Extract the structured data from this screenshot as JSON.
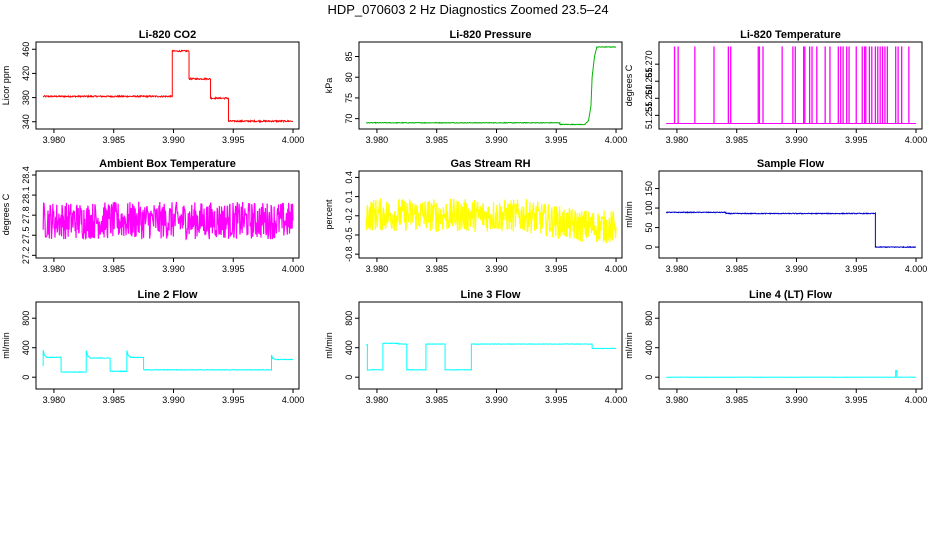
{
  "figure_title": "HDP_070603  2 Hz Diagnostics Zoomed 23.5–24",
  "chart_data": [
    {
      "type": "line",
      "title": "Li-820 CO2",
      "xlabel": "",
      "ylabel": "Licor ppm",
      "xlim": [
        3.9785,
        4.0005
      ],
      "ylim": [
        328,
        472
      ],
      "x_ticks": [
        "3.980",
        "3.985",
        "3.990",
        "3.995",
        "4.000"
      ],
      "y_ticks": [
        {
          "value": 340,
          "label": "340"
        },
        {
          "value": 380,
          "label": "380"
        },
        {
          "value": 420,
          "label": "420"
        },
        {
          "value": 460,
          "label": "460"
        }
      ],
      "color": "#ff0000",
      "noise": 1.2,
      "series": [
        {
          "name": "CO2",
          "x": [
            3.9791,
            3.9899,
            3.9899,
            3.9913,
            3.9913,
            3.9931,
            3.9931,
            3.9946,
            3.9946,
            4.0
          ],
          "y": [
            382,
            382,
            457,
            457,
            411,
            411,
            379,
            379,
            341,
            341
          ]
        }
      ]
    },
    {
      "type": "line",
      "title": "Li-820 Pressure",
      "xlabel": "",
      "ylabel": "kPa",
      "xlim": [
        3.9785,
        4.0005
      ],
      "ylim": [
        67.5,
        88.5
      ],
      "x_ticks": [
        "3.980",
        "3.985",
        "3.990",
        "3.995",
        "4.000"
      ],
      "y_ticks": [
        {
          "value": 70,
          "label": "70"
        },
        {
          "value": 75,
          "label": "75"
        },
        {
          "value": 80,
          "label": "80"
        },
        {
          "value": 85,
          "label": "85"
        }
      ],
      "color": "#00b400",
      "noise": 0.08,
      "series": [
        {
          "name": "Pressure",
          "x": [
            3.9791,
            3.9953,
            3.9953,
            3.9974,
            3.9977,
            3.9979,
            3.998,
            3.9982,
            3.9984,
            4.0
          ],
          "y": [
            69.0,
            69.0,
            68.6,
            68.6,
            69.5,
            73,
            80,
            85,
            87.3,
            87.3
          ]
        }
      ]
    },
    {
      "type": "line",
      "title": "Li-820 Temperature",
      "xlabel": "",
      "ylabel": "degrees C",
      "xlim": [
        3.9785,
        4.0005
      ],
      "ylim": [
        51.251,
        51.2765
      ],
      "x_ticks": [
        "3.980",
        "3.985",
        "3.990",
        "3.995",
        "4.000"
      ],
      "y_ticks": [
        {
          "value": 51.255,
          "label": "51.255"
        },
        {
          "value": 51.26,
          "label": "51.260"
        },
        {
          "value": 51.265,
          "label": "51.265"
        },
        {
          "value": 51.27,
          "label": "51.270"
        }
      ],
      "color": "#ff00ff",
      "noise": 0,
      "series": [
        {
          "name": "Temperature",
          "x": [
            3.9791,
            4.0
          ],
          "y": [
            51.2526,
            51.2526
          ]
        }
      ],
      "spikes": [
        3.9798,
        3.9801,
        3.9815,
        3.9831,
        3.9843,
        3.9845,
        3.9868,
        3.9869,
        3.9872,
        3.9888,
        3.9897,
        3.9899,
        3.9906,
        3.9907,
        3.9911,
        3.9913,
        3.9917,
        3.9924,
        3.9928,
        3.9935,
        3.9937,
        3.9939,
        3.9942,
        3.9944,
        3.995,
        3.9955,
        3.9957,
        3.9958,
        3.9961,
        3.9963,
        3.9966,
        3.9968,
        3.997,
        3.9972,
        3.9974,
        3.9976,
        3.9983,
        3.9985,
        3.9988,
        3.9994
      ],
      "spike_top": 51.2752
    },
    {
      "type": "line",
      "title": "Ambient Box Temperature",
      "xlabel": "",
      "ylabel": "degrees C",
      "xlim": [
        3.9785,
        4.0005
      ],
      "ylim": [
        27.16,
        28.46
      ],
      "x_ticks": [
        "3.980",
        "3.985",
        "3.990",
        "3.995",
        "4.000"
      ],
      "y_ticks": [
        {
          "value": 27.2,
          "label": "27.2"
        },
        {
          "value": 27.5,
          "label": "27.5"
        },
        {
          "value": 27.8,
          "label": "27.8"
        },
        {
          "value": 28.1,
          "label": "28.1"
        },
        {
          "value": 28.4,
          "label": "28.4"
        }
      ],
      "color": "#ff00ff",
      "noise": 0.28,
      "series": [
        {
          "name": "Ambient Box Temperature",
          "x": [
            3.9791,
            4.0
          ],
          "y": [
            27.72,
            27.72
          ]
        }
      ]
    },
    {
      "type": "line",
      "title": "Gas Stream RH",
      "xlabel": "",
      "ylabel": "percent",
      "xlim": [
        3.9785,
        4.0005
      ],
      "ylim": [
        -0.86,
        0.5
      ],
      "x_ticks": [
        "3.980",
        "3.985",
        "3.990",
        "3.995",
        "4.000"
      ],
      "y_ticks": [
        {
          "value": -0.8,
          "label": "-0.8"
        },
        {
          "value": -0.5,
          "label": "-0.5"
        },
        {
          "value": -0.2,
          "label": "-0.2"
        },
        {
          "value": 0.1,
          "label": "0.1"
        },
        {
          "value": 0.4,
          "label": "0.4"
        }
      ],
      "color": "#ffff00",
      "noise": 0.26,
      "series": [
        {
          "name": "Gas Stream RH",
          "x": [
            3.9791,
            3.9925,
            3.9965,
            4.0
          ],
          "y": [
            -0.18,
            -0.2,
            -0.35,
            -0.38
          ]
        }
      ]
    },
    {
      "type": "line",
      "title": "Sample Flow",
      "xlabel": "",
      "ylabel": "ml/min",
      "xlim": [
        3.9785,
        4.0005
      ],
      "ylim": [
        -28,
        195
      ],
      "x_ticks": [
        "3.980",
        "3.985",
        "3.990",
        "3.995",
        "4.000"
      ],
      "y_ticks": [
        {
          "value": 0,
          "label": "0"
        },
        {
          "value": 50,
          "label": "50"
        },
        {
          "value": 100,
          "label": "100"
        },
        {
          "value": 150,
          "label": "150"
        }
      ],
      "color": "#0000cc",
      "noise": 1.0,
      "series": [
        {
          "name": "Sample Flow",
          "x": [
            3.9791,
            3.9841,
            3.9841,
            3.9966,
            3.9966,
            4.0
          ],
          "y": [
            89,
            89,
            86,
            86,
            0,
            0
          ]
        }
      ]
    },
    {
      "type": "line",
      "title": "Line 2 Flow",
      "xlabel": "",
      "ylabel": "ml/min",
      "xlim": [
        3.9785,
        4.0005
      ],
      "ylim": [
        -160,
        1020
      ],
      "x_ticks": [
        "3.980",
        "3.985",
        "3.990",
        "3.995",
        "4.000"
      ],
      "y_ticks": [
        {
          "value": 0,
          "label": "0"
        },
        {
          "value": 400,
          "label": "400"
        },
        {
          "value": 800,
          "label": "800"
        }
      ],
      "color": "#00ffff",
      "noise": 4,
      "series": [
        {
          "name": "Line 2 Flow",
          "x": [
            3.9791,
            3.9791,
            3.9792,
            3.9794,
            3.9806,
            3.9806,
            3.9827,
            3.9827,
            3.9828,
            3.983,
            3.9847,
            3.9847,
            3.9861,
            3.9861,
            3.9862,
            3.9864,
            3.9875,
            3.9875,
            3.9982,
            3.9982,
            3.9983,
            3.9986,
            4.0
          ],
          "y": [
            150,
            370,
            300,
            270,
            270,
            70,
            70,
            360,
            300,
            260,
            260,
            80,
            80,
            360,
            300,
            270,
            270,
            100,
            100,
            300,
            250,
            240,
            240
          ]
        }
      ]
    },
    {
      "type": "line",
      "title": "Line 3 Flow",
      "xlabel": "",
      "ylabel": "ml/min",
      "xlim": [
        3.9785,
        4.0005
      ],
      "ylim": [
        -160,
        1020
      ],
      "x_ticks": [
        "3.980",
        "3.985",
        "3.990",
        "3.995",
        "4.000"
      ],
      "y_ticks": [
        {
          "value": 0,
          "label": "0"
        },
        {
          "value": 400,
          "label": "400"
        },
        {
          "value": 800,
          "label": "800"
        }
      ],
      "color": "#00ffff",
      "noise": 3,
      "series": [
        {
          "name": "Line 3 Flow",
          "x": [
            3.9791,
            3.9791,
            3.9792,
            3.9792,
            3.9805,
            3.9805,
            3.9818,
            3.9818,
            3.9825,
            3.9825,
            3.9841,
            3.9841,
            3.9857,
            3.9857,
            3.9879,
            3.9879,
            3.998,
            3.998,
            4.0
          ],
          "y": [
            440,
            440,
            440,
            100,
            100,
            460,
            460,
            450,
            450,
            100,
            100,
            450,
            450,
            100,
            100,
            450,
            450,
            390,
            390
          ]
        }
      ]
    },
    {
      "type": "line",
      "title": "Line 4 (LT) Flow",
      "xlabel": "",
      "ylabel": "ml/min",
      "xlim": [
        3.9785,
        4.0005
      ],
      "ylim": [
        -160,
        1020
      ],
      "x_ticks": [
        "3.980",
        "3.985",
        "3.990",
        "3.995",
        "4.000"
      ],
      "y_ticks": [
        {
          "value": 0,
          "label": "0"
        },
        {
          "value": 400,
          "label": "400"
        },
        {
          "value": 800,
          "label": "800"
        }
      ],
      "color": "#00ffff",
      "noise": 1.5,
      "series": [
        {
          "name": "Line 4 (LT) Flow",
          "x": [
            3.9791,
            3.9983,
            3.9983,
            3.9984,
            3.9984,
            4.0
          ],
          "y": [
            0,
            0,
            90,
            90,
            0,
            0
          ]
        }
      ]
    }
  ]
}
